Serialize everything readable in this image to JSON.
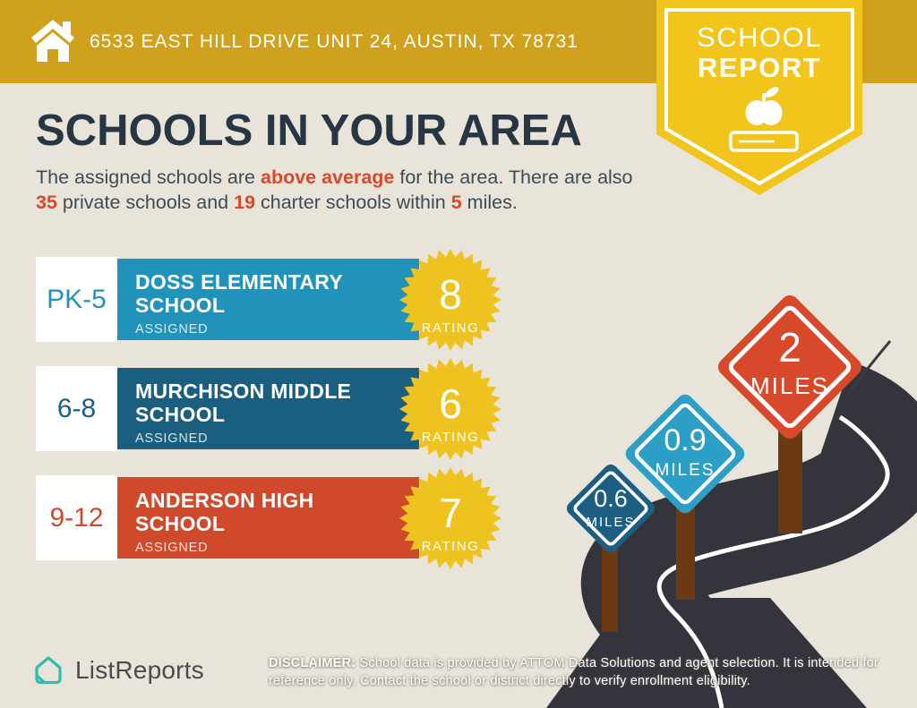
{
  "topbar": {
    "address": "6533 EAST HILL DRIVE UNIT 24, AUSTIN, TX 78731",
    "bg": "#CFA11D"
  },
  "badge": {
    "line1": "SCHOOL",
    "line2": "REPORT",
    "bg": "#F2C51D"
  },
  "title": "SCHOOLS IN YOUR AREA",
  "intro": {
    "highlight_color": "#D8492B",
    "segments": [
      {
        "text": "The assigned schools are ",
        "highlight": false
      },
      {
        "text": "above average",
        "highlight": true
      },
      {
        "text": " for the area. There are also ",
        "highlight": false
      },
      {
        "text": "35",
        "highlight": true
      },
      {
        "text": " private schools and ",
        "highlight": false
      },
      {
        "text": "19",
        "highlight": true
      },
      {
        "text": " charter schools within ",
        "highlight": false
      },
      {
        "text": "5",
        "highlight": true
      },
      {
        "text": " miles.",
        "highlight": false
      }
    ]
  },
  "schools": {
    "assigned_label": "ASSIGNED",
    "rating_label": "RATING",
    "badge_color": "#EFC31F",
    "items": [
      {
        "grade": "PK-5",
        "name": "DOSS ELEMENTARY\nSCHOOL",
        "rating": "8",
        "color": "#2193BA"
      },
      {
        "grade": "6-8",
        "name": "MURCHISON MIDDLE\nSCHOOL",
        "rating": "6",
        "color": "#1B5F80"
      },
      {
        "grade": "9-12",
        "name": "ANDERSON HIGH\nSCHOOL",
        "rating": "7",
        "color": "#D0492B"
      }
    ]
  },
  "signs": {
    "miles_label": "MILES",
    "items": [
      {
        "value": "0.6",
        "color": "#1C5F83"
      },
      {
        "value": "0.9",
        "color": "#2C9FC7"
      },
      {
        "value": "2",
        "color": "#D7492A"
      }
    ]
  },
  "footer": {
    "logo_text": "ListReports",
    "logo_color": "#2CBFAE",
    "disclaimer_label": "DISCLAIMER:",
    "disclaimer_text": " School data is provided by ATTOM Data Solutions and agent selection. It is intended for reference only. Contact the school or district directly to verify enrollment eligibility."
  }
}
